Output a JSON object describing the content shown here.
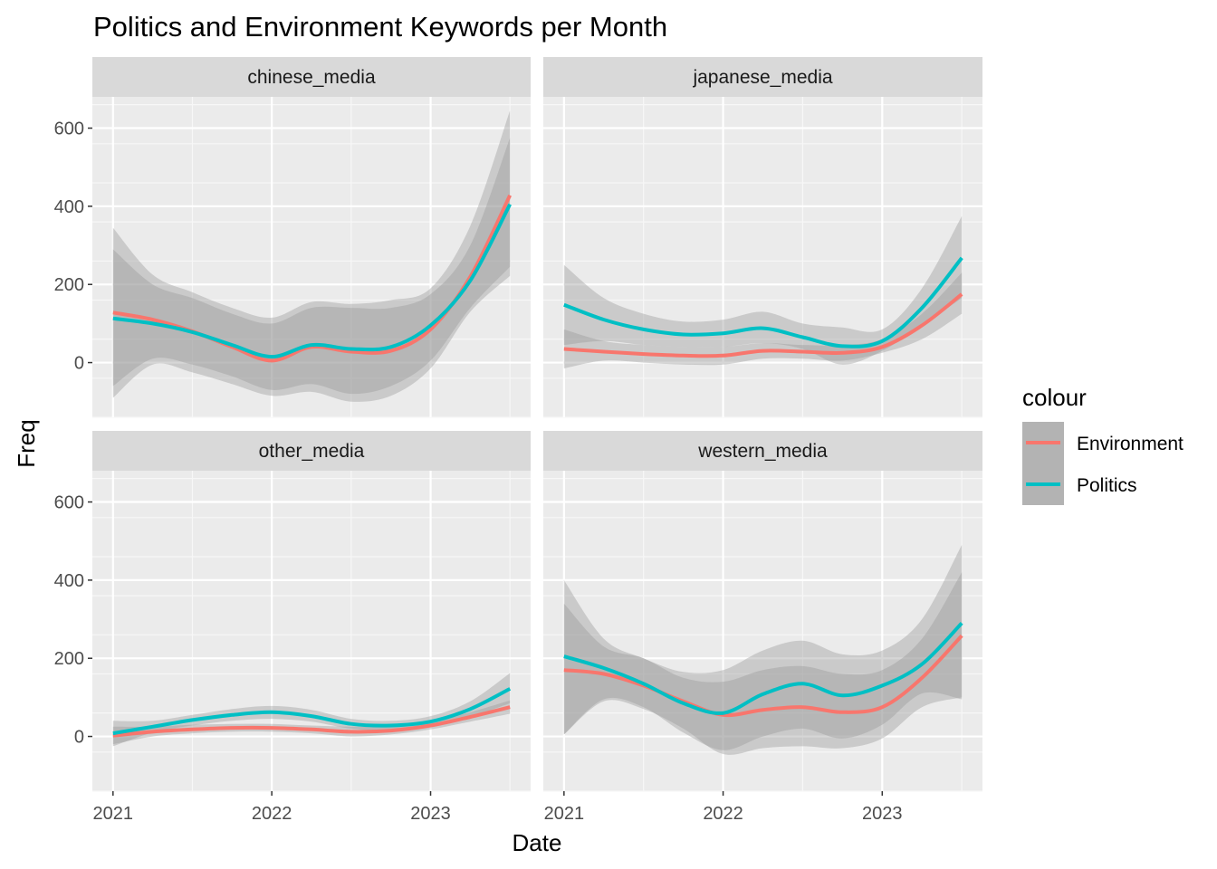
{
  "chart_data": {
    "type": "line",
    "title": "Politics and Environment Keywords per Month",
    "xlabel": "Date",
    "ylabel": "Freq",
    "xlim": [
      2020.87,
      2023.63
    ],
    "ylim": [
      -140,
      680
    ],
    "x_ticks": [
      2021,
      2022,
      2023
    ],
    "x_tick_labels": [
      "2021",
      "2022",
      "2023"
    ],
    "y_ticks": [
      0,
      200,
      400,
      600
    ],
    "y_tick_labels": [
      "0",
      "200",
      "400",
      "600"
    ],
    "grid": true,
    "smoothing": "loess with confidence bands",
    "legend": {
      "title": "colour",
      "position": "right",
      "entries": [
        {
          "label": "Environment",
          "color": "#F8766D"
        },
        {
          "label": "Politics",
          "color": "#00BFC4"
        }
      ]
    },
    "panels": [
      {
        "name": "chinese_media",
        "series": [
          {
            "name": "Environment",
            "x": [
              2021.0,
              2021.25,
              2021.5,
              2021.75,
              2022.0,
              2022.25,
              2022.5,
              2022.75,
              2023.0,
              2023.25,
              2023.5
            ],
            "y": [
              128,
              110,
              80,
              40,
              5,
              40,
              28,
              30,
              85,
              220,
              428
            ],
            "lower": [
              -90,
              -5,
              -25,
              -55,
              -85,
              -75,
              -100,
              -85,
              -15,
              130,
              222
            ],
            "upper": [
              345,
              225,
              180,
              140,
              115,
              155,
              150,
              160,
              190,
              350,
              645
            ]
          },
          {
            "name": "Politics",
            "x": [
              2021.0,
              2021.25,
              2021.5,
              2021.75,
              2022.0,
              2022.25,
              2022.5,
              2022.75,
              2023.0,
              2023.25,
              2023.5
            ],
            "y": [
              113,
              100,
              78,
              45,
              15,
              45,
              35,
              40,
              95,
              210,
              405
            ],
            "lower": [
              -60,
              10,
              -5,
              -35,
              -70,
              -55,
              -80,
              -60,
              5,
              140,
              245
            ],
            "upper": [
              290,
              200,
              165,
              125,
              100,
              140,
              140,
              140,
              175,
              300,
              575
            ]
          }
        ]
      },
      {
        "name": "japanese_media",
        "series": [
          {
            "name": "Environment",
            "x": [
              2021.0,
              2021.25,
              2021.5,
              2021.75,
              2022.0,
              2022.25,
              2022.5,
              2022.75,
              2023.0,
              2023.25,
              2023.5
            ],
            "y": [
              35,
              28,
              22,
              18,
              18,
              30,
              28,
              25,
              40,
              95,
              175
            ],
            "lower": [
              -15,
              5,
              0,
              -5,
              -5,
              10,
              10,
              5,
              25,
              60,
              125
            ],
            "upper": [
              85,
              55,
              45,
              40,
              40,
              50,
              45,
              45,
              60,
              125,
              230
            ]
          },
          {
            "name": "Politics",
            "x": [
              2021.0,
              2021.25,
              2021.5,
              2021.75,
              2022.0,
              2022.25,
              2022.5,
              2022.75,
              2023.0,
              2023.25,
              2023.5
            ],
            "y": [
              148,
              110,
              85,
              72,
              75,
              88,
              65,
              42,
              55,
              140,
              268
            ],
            "lower": [
              45,
              55,
              45,
              40,
              40,
              50,
              35,
              -5,
              30,
              95,
              165
            ],
            "upper": [
              250,
              165,
              125,
              105,
              110,
              130,
              100,
              90,
              85,
              190,
              375
            ]
          }
        ]
      },
      {
        "name": "other_media",
        "series": [
          {
            "name": "Environment",
            "x": [
              2021.0,
              2021.25,
              2021.5,
              2021.75,
              2022.0,
              2022.25,
              2022.5,
              2022.75,
              2023.0,
              2023.25,
              2023.5
            ],
            "y": [
              2,
              12,
              18,
              22,
              22,
              18,
              12,
              15,
              28,
              50,
              75
            ],
            "lower": [
              -20,
              0,
              8,
              12,
              12,
              8,
              0,
              5,
              18,
              38,
              58
            ],
            "upper": [
              25,
              25,
              30,
              32,
              32,
              28,
              25,
              25,
              38,
              62,
              92
            ]
          },
          {
            "name": "Politics",
            "x": [
              2021.0,
              2021.25,
              2021.5,
              2021.75,
              2022.0,
              2022.25,
              2022.5,
              2022.75,
              2023.0,
              2023.25,
              2023.5
            ],
            "y": [
              8,
              25,
              42,
              55,
              62,
              52,
              32,
              28,
              38,
              70,
              122
            ],
            "lower": [
              -25,
              10,
              28,
              40,
              45,
              38,
              20,
              15,
              25,
              50,
              85
            ],
            "upper": [
              40,
              40,
              55,
              70,
              78,
              68,
              45,
              40,
              52,
              90,
              162
            ]
          }
        ]
      },
      {
        "name": "western_media",
        "series": [
          {
            "name": "Environment",
            "x": [
              2021.0,
              2021.25,
              2021.5,
              2021.75,
              2022.0,
              2022.25,
              2022.5,
              2022.75,
              2023.0,
              2023.25,
              2023.5
            ],
            "y": [
              170,
              160,
              130,
              90,
              55,
              68,
              75,
              62,
              75,
              150,
              258
            ],
            "lower": [
              5,
              90,
              70,
              20,
              -45,
              -30,
              -25,
              -30,
              -5,
              75,
              100
            ],
            "upper": [
              340,
              230,
              200,
              150,
              140,
              170,
              180,
              160,
              170,
              250,
              420
            ]
          },
          {
            "name": "Politics",
            "x": [
              2021.0,
              2021.25,
              2021.5,
              2021.75,
              2022.0,
              2022.25,
              2022.5,
              2022.75,
              2023.0,
              2023.25,
              2023.5
            ],
            "y": [
              205,
              175,
              135,
              85,
              60,
              108,
              135,
              105,
              130,
              185,
              290
            ],
            "lower": [
              5,
              95,
              75,
              10,
              -35,
              0,
              20,
              -5,
              30,
              110,
              95
            ],
            "upper": [
              400,
              250,
              200,
              165,
              170,
              220,
              245,
              210,
              220,
              300,
              490
            ]
          }
        ]
      }
    ]
  }
}
